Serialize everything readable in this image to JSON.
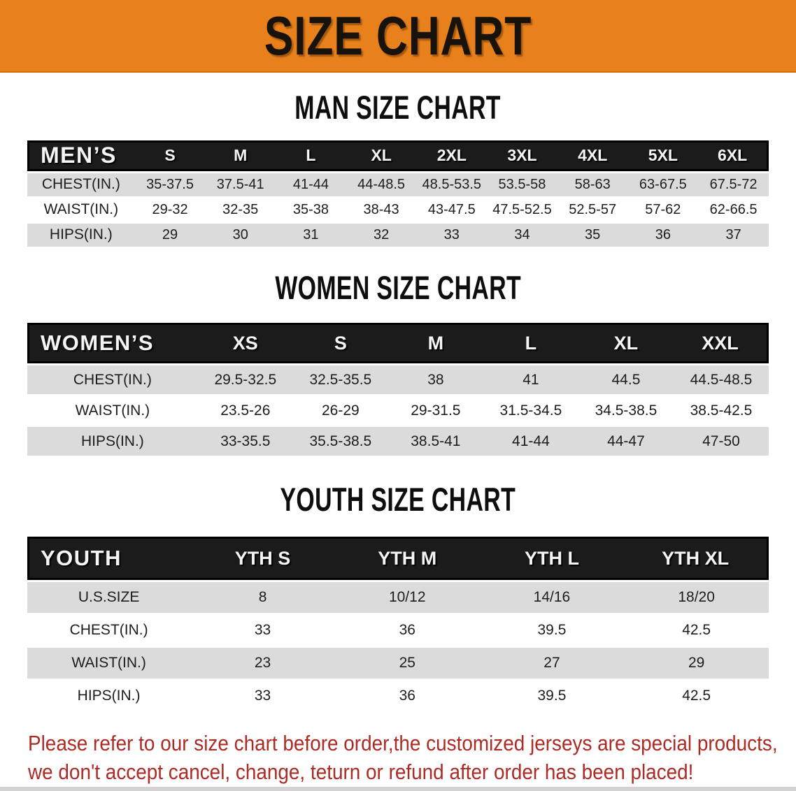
{
  "banner": {
    "title": "SIZE CHART"
  },
  "sections": [
    {
      "title": "MAN SIZE CHART",
      "header_label": "MEN’S",
      "columns": [
        "S",
        "M",
        "L",
        "XL",
        "2XL",
        "3XL",
        "4XL",
        "5XL",
        "6XL"
      ],
      "rows": [
        {
          "label": "CHEST(IN.)",
          "values": [
            "35-37.5",
            "37.5-41",
            "41-44",
            "44-48.5",
            "48.5-53.5",
            "53.5-58",
            "58-63",
            "63-67.5",
            "67.5-72"
          ]
        },
        {
          "label": "WAIST(IN.)",
          "values": [
            "29-32",
            "32-35",
            "35-38",
            "38-43",
            "43-47.5",
            "47.5-52.5",
            "52.5-57",
            "57-62",
            "62-66.5"
          ]
        },
        {
          "label": "HIPS(IN.)",
          "values": [
            "29",
            "30",
            "31",
            "32",
            "33",
            "34",
            "35",
            "36",
            "37"
          ]
        }
      ]
    },
    {
      "title": "WOMEN SIZE CHART",
      "header_label": "WOMEN’S",
      "columns": [
        "XS",
        "S",
        "M",
        "L",
        "XL",
        "XXL"
      ],
      "rows": [
        {
          "label": "CHEST(IN.)",
          "values": [
            "29.5-32.5",
            "32.5-35.5",
            "38",
            "41",
            "44.5",
            "44.5-48.5"
          ]
        },
        {
          "label": "WAIST(IN.)",
          "values": [
            "23.5-26",
            "26-29",
            "29-31.5",
            "31.5-34.5",
            "34.5-38.5",
            "38.5-42.5"
          ]
        },
        {
          "label": "HIPS(IN.)",
          "values": [
            "33-35.5",
            "35.5-38.5",
            "38.5-41",
            "41-44",
            "44-47",
            "47-50"
          ]
        }
      ]
    },
    {
      "title": "YOUTH SIZE CHART",
      "header_label": "YOUTH",
      "columns": [
        "YTH S",
        "YTH M",
        "YTH L",
        "YTH XL"
      ],
      "rows": [
        {
          "label": "U.S.SIZE",
          "values": [
            "8",
            "10/12",
            "14/16",
            "18/20"
          ]
        },
        {
          "label": "CHEST(IN.)",
          "values": [
            "33",
            "36",
            "39.5",
            "42.5"
          ]
        },
        {
          "label": "WAIST(IN.)",
          "values": [
            "23",
            "25",
            "27",
            "29"
          ]
        },
        {
          "label": "HIPS(IN.)",
          "values": [
            "33",
            "36",
            "39.5",
            "42.5"
          ]
        }
      ]
    }
  ],
  "footer": {
    "line1": "Please refer to our size chart before order,the customized jerseys are special products,",
    "line2": "we don't accept cancel, change, teturn or refund after order has been placed!"
  },
  "colors": {
    "banner_bg": "#E8811B",
    "table_header_bg": "#1B1B1B",
    "row_stripe": "#DBDBDB",
    "footer_text": "#AD2B24",
    "title_text": "#0E0E0E"
  }
}
